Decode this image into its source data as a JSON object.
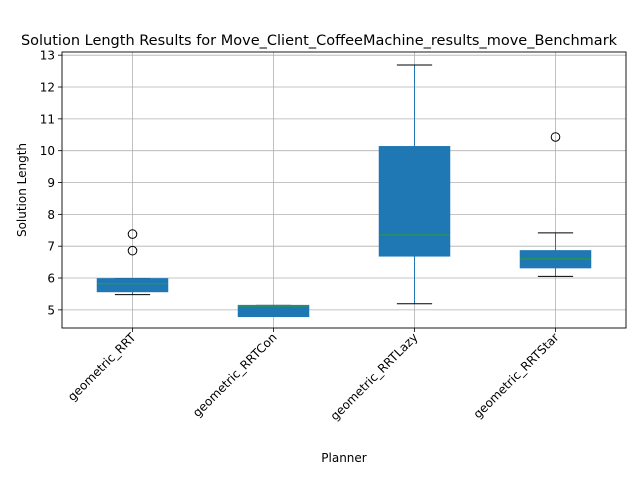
{
  "chart_data": {
    "type": "box",
    "title": "Solution Length Results for Move_Client_CoffeeMachine_results_move_Benchmark",
    "xlabel": "Planner",
    "ylabel": "Solution Length",
    "ylim": [
      4.43,
      13.1
    ],
    "yticks": [
      5,
      6,
      7,
      8,
      9,
      10,
      11,
      12,
      13
    ],
    "grid": true,
    "categories": [
      "geometric_RRT",
      "geometric_RRTCon",
      "geometric_RRTLazy",
      "geometric_RRTStar"
    ],
    "boxes": [
      {
        "whisker_low": 5.48,
        "q1": 5.57,
        "median": 5.82,
        "q3": 5.98,
        "whisker_high": 5.98,
        "outliers": [
          6.86,
          7.38
        ]
      },
      {
        "whisker_low": 4.79,
        "q1": 4.79,
        "median": 5.12,
        "q3": 5.14,
        "whisker_high": 5.14,
        "outliers": []
      },
      {
        "whisker_low": 5.19,
        "q1": 6.69,
        "median": 7.35,
        "q3": 10.13,
        "whisker_high": 12.69,
        "outliers": []
      },
      {
        "whisker_low": 6.05,
        "q1": 6.32,
        "median": 6.6,
        "q3": 6.86,
        "whisker_high": 7.42,
        "outliers": [
          10.43
        ]
      }
    ],
    "colors": {
      "box": "#1f77b4",
      "median": "#2ca02c",
      "whisker": "#1f77b4",
      "cap": "#000000",
      "grid": "#b0b0b0"
    }
  }
}
